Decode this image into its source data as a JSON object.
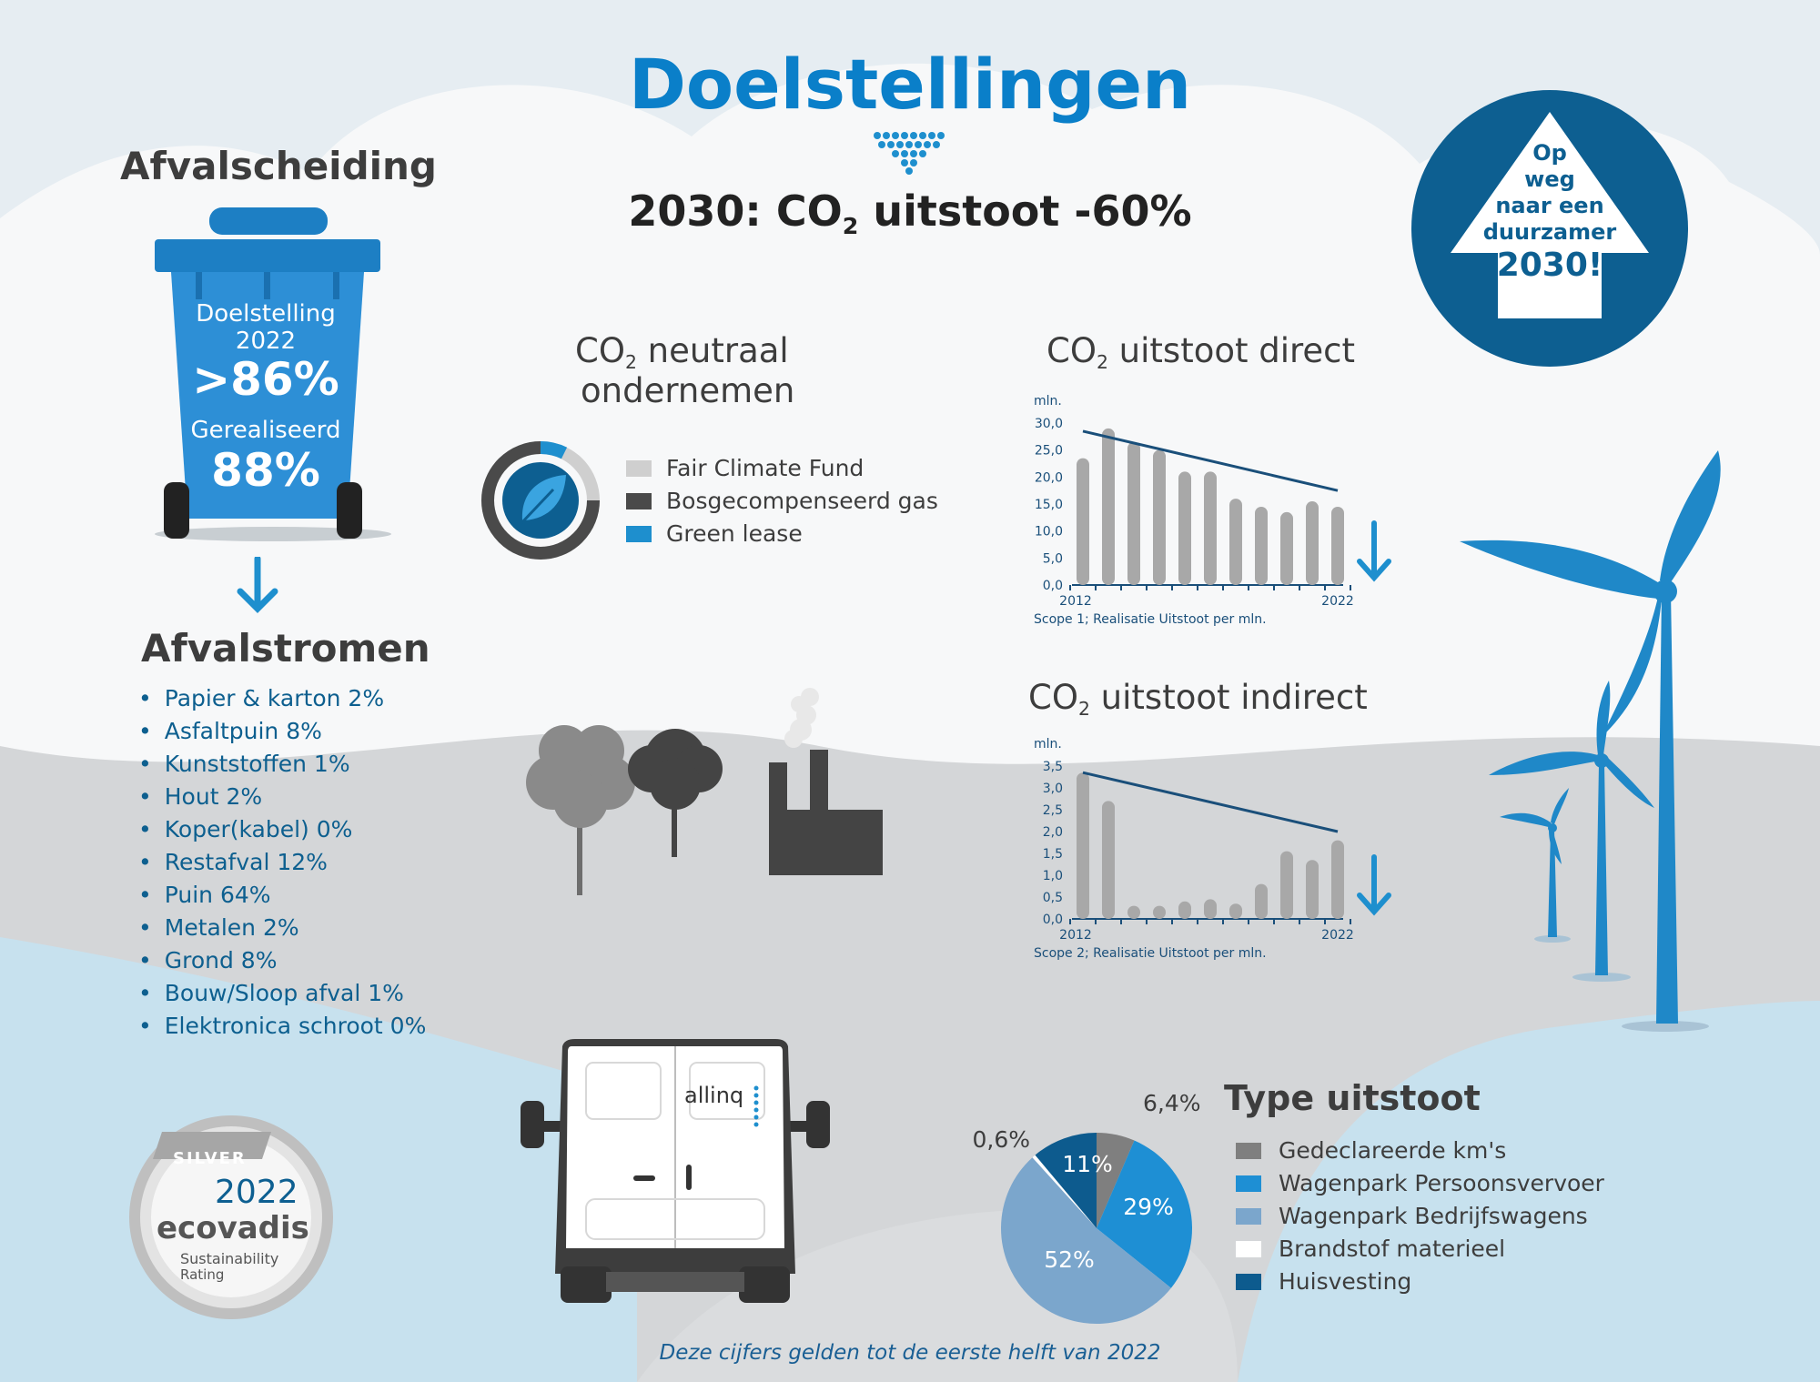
{
  "header": {
    "title": "Doelstellingen",
    "goal_prefix": "2030: CO",
    "goal_sub": "2",
    "goal_suffix": " uitstoot -60%"
  },
  "badge": {
    "line1": "Op",
    "line2": "weg",
    "line3": "naar een",
    "line4": "duurzamer",
    "line5": "2030!"
  },
  "afvalscheiding": {
    "title": "Afvalscheiding",
    "bin_label1": "Doelstelling",
    "bin_label2": "2022",
    "target": ">86%",
    "realized_label": "Gerealiseerd",
    "realized": "88%"
  },
  "afvalstromen": {
    "title": "Afvalstromen",
    "items": [
      "Papier & karton 2%",
      "Asfaltpuin 8%",
      "Kunststoffen 1%",
      "Hout 2%",
      "Koper(kabel) 0%",
      "Restafval 12%",
      "Puin 64%",
      "Metalen 2%",
      "Grond 8%",
      "Bouw/Sloop afval 1%",
      "Elektronica schroot 0%"
    ]
  },
  "neutraal": {
    "title_prefix": "CO",
    "title_sub": "2",
    "title_suffix": " neutraal",
    "title_line2": "ondernemen",
    "legend": [
      {
        "label": "Fair Climate Fund",
        "color": "#cfcfcf"
      },
      {
        "label": "Bosgecompenseerd gas",
        "color": "#4a4a4a"
      },
      {
        "label": "Green lease",
        "color": "#1e8fce"
      }
    ]
  },
  "van": {
    "brand": "allinq"
  },
  "ecovadis": {
    "medal": "SILVER",
    "year": "2022",
    "brand": "ecovadis",
    "line1": "Sustainability",
    "line2": "Rating"
  },
  "chart_data": [
    {
      "type": "bar",
      "title_prefix": "CO",
      "title_sub": "2",
      "title_suffix": " uitstoot direct",
      "ylabel": "mln.",
      "yticks": [
        "0,0",
        "5,0",
        "10,0",
        "15,0",
        "20,0",
        "25,0",
        "30,0"
      ],
      "ylim": [
        0,
        30
      ],
      "x_start_label": "2012",
      "x_end_label": "2022",
      "categories": [
        "",
        "",
        "",
        "",
        "",
        "",
        "",
        "",
        "",
        "",
        ""
      ],
      "values": [
        23.5,
        29,
        26.5,
        25,
        21,
        21,
        16,
        14.5,
        13.5,
        15.5,
        14.5
      ],
      "trend": [
        28.5,
        17.5
      ],
      "caption": "Scope 1; Realisatie Uitstoot per mln.",
      "bar_color": "#a8a8a8",
      "trend_color": "#1a4f7a"
    },
    {
      "type": "bar",
      "title_prefix": "CO",
      "title_sub": "2",
      "title_suffix": " uitstoot indirect",
      "ylabel": "mln.",
      "yticks": [
        "0,0",
        "0,5",
        "1,0",
        "1,5",
        "2,0",
        "2,5",
        "3,0",
        "3,5"
      ],
      "ylim": [
        0,
        3.5
      ],
      "x_start_label": "2012",
      "x_end_label": "2022",
      "categories": [
        "",
        "",
        "",
        "",
        "",
        "",
        "",
        "",
        "",
        "",
        ""
      ],
      "values": [
        3.35,
        2.7,
        0.3,
        0.3,
        0.4,
        0.45,
        0.35,
        0.8,
        1.55,
        1.35,
        1.8
      ],
      "trend": [
        3.35,
        2.0
      ],
      "caption": "Scope 2; Realisatie Uitstoot per mln.",
      "bar_color": "#a8a8a8",
      "trend_color": "#1a4f7a"
    },
    {
      "type": "pie",
      "title": "Type uitstoot",
      "labels": [
        "Gedeclareerde km's",
        "Wagenpark Persoonsvervoer",
        "Wagenpark Bedrijfswagens",
        "Brandstof materieel",
        "Huisvesting"
      ],
      "values": [
        6.4,
        29,
        52,
        0.6,
        11
      ],
      "value_labels": [
        "6,4%",
        "29%",
        "52%",
        "0,6%",
        "11%"
      ],
      "colors": [
        "#7f7f7f",
        "#1e8fd4",
        "#7ba6cc",
        "#ffffff",
        "#0d5b8e"
      ]
    }
  ],
  "footer": "Deze cijfers gelden tot de eerste helft van 2022"
}
